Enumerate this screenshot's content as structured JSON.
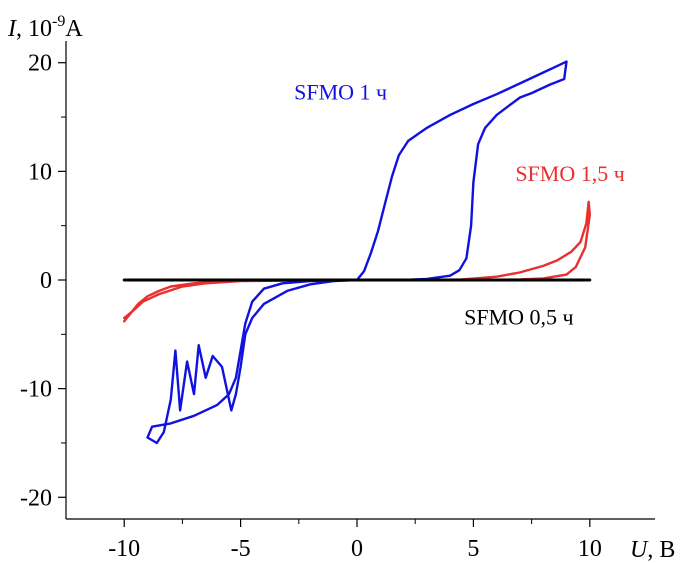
{
  "chart_data": {
    "type": "line",
    "ylabel": {
      "symbol": "I",
      "unit_prefix": ", 10",
      "exponent": "-9",
      "unit": "A"
    },
    "xlabel": {
      "symbol": "U",
      "unit": ", B"
    },
    "xlim": [
      -12.5,
      12.8
    ],
    "ylim": [
      -22,
      22
    ],
    "x_ticks": [
      "-10",
      "-5",
      "0",
      "5",
      "10"
    ],
    "x_tick_values": [
      -10,
      -5,
      0,
      5,
      10
    ],
    "y_ticks": [
      "20",
      "10",
      "0",
      "-10",
      "-20"
    ],
    "y_tick_values": [
      20,
      10,
      0,
      -10,
      -20
    ],
    "series": [
      {
        "name": "SFMO 0,5 ч",
        "color": "#000000",
        "points": [
          [
            -10,
            0
          ],
          [
            10,
            0
          ]
        ]
      },
      {
        "name": "SFMO 1,5 ч",
        "color": "#e83030",
        "points": [
          [
            -10,
            -3.8
          ],
          [
            -9.7,
            -3.0
          ],
          [
            -9.4,
            -2.2
          ],
          [
            -9.0,
            -1.5
          ],
          [
            -8.5,
            -1.0
          ],
          [
            -8.0,
            -0.6
          ],
          [
            -7.0,
            -0.3
          ],
          [
            -6.0,
            -0.15
          ],
          [
            -5.0,
            -0.05
          ],
          [
            -3.0,
            0
          ],
          [
            0,
            0
          ],
          [
            3.0,
            0
          ],
          [
            4.5,
            0.05
          ],
          [
            6.0,
            0.3
          ],
          [
            7.0,
            0.7
          ],
          [
            8.0,
            1.3
          ],
          [
            8.6,
            1.8
          ],
          [
            9.2,
            2.6
          ],
          [
            9.6,
            3.5
          ],
          [
            9.85,
            5.2
          ],
          [
            9.95,
            7.2
          ],
          [
            10,
            6.0
          ],
          [
            9.8,
            3.0
          ],
          [
            9.4,
            1.2
          ],
          [
            9.0,
            0.5
          ],
          [
            8.0,
            0.15
          ],
          [
            7.0,
            0.05
          ],
          [
            5.0,
            0
          ],
          [
            0,
            0
          ],
          [
            -5.0,
            -0.1
          ],
          [
            -6.5,
            -0.3
          ],
          [
            -7.5,
            -0.6
          ],
          [
            -8.5,
            -1.3
          ],
          [
            -9.2,
            -2.0
          ],
          [
            -9.6,
            -2.8
          ],
          [
            -10,
            -3.5
          ]
        ]
      },
      {
        "name": "SFMO 1 ч",
        "color": "#1212e0",
        "points": [
          [
            -3.2,
            -0.3
          ],
          [
            -2.0,
            -0.1
          ],
          [
            0,
            0
          ],
          [
            0.3,
            0.8
          ],
          [
            0.6,
            2.5
          ],
          [
            0.9,
            4.5
          ],
          [
            1.2,
            7.0
          ],
          [
            1.5,
            9.5
          ],
          [
            1.8,
            11.5
          ],
          [
            2.2,
            12.8
          ],
          [
            3.0,
            14.0
          ],
          [
            4.0,
            15.2
          ],
          [
            5.0,
            16.2
          ],
          [
            6.0,
            17.1
          ],
          [
            7.0,
            18.1
          ],
          [
            8.0,
            19.1
          ],
          [
            8.7,
            19.8
          ],
          [
            9.0,
            20.1
          ],
          [
            8.9,
            18.5
          ],
          [
            8.3,
            18.0
          ],
          [
            7.5,
            17.2
          ],
          [
            7.0,
            16.8
          ],
          [
            6.5,
            16.0
          ],
          [
            6.0,
            15.2
          ],
          [
            5.5,
            14.0
          ],
          [
            5.2,
            12.5
          ],
          [
            5.0,
            9.0
          ],
          [
            4.9,
            5.0
          ],
          [
            4.7,
            2.0
          ],
          [
            4.4,
            0.9
          ],
          [
            4.0,
            0.4
          ],
          [
            3.0,
            0.1
          ],
          [
            2.0,
            0
          ],
          [
            0,
            0
          ],
          [
            -1.0,
            -0.1
          ],
          [
            -2.0,
            -0.4
          ],
          [
            -3.0,
            -1.0
          ],
          [
            -4.0,
            -2.2
          ],
          [
            -4.5,
            -3.5
          ],
          [
            -4.8,
            -5.0
          ],
          [
            -5.0,
            -8.0
          ],
          [
            -5.2,
            -10.5
          ],
          [
            -5.4,
            -12.0
          ],
          [
            -5.5,
            -11.0
          ],
          [
            -5.8,
            -8.0
          ],
          [
            -6.2,
            -7.0
          ],
          [
            -6.5,
            -9.0
          ],
          [
            -6.8,
            -6.0
          ],
          [
            -7.0,
            -10.5
          ],
          [
            -7.3,
            -7.5
          ],
          [
            -7.6,
            -12.0
          ],
          [
            -7.8,
            -6.5
          ],
          [
            -8.0,
            -11.0
          ],
          [
            -8.3,
            -14.0
          ],
          [
            -8.6,
            -15.0
          ],
          [
            -9.0,
            -14.5
          ],
          [
            -8.8,
            -13.5
          ],
          [
            -8.0,
            -13.2
          ],
          [
            -7.0,
            -12.5
          ],
          [
            -6.0,
            -11.5
          ],
          [
            -5.5,
            -10.5
          ],
          [
            -5.2,
            -9.0
          ],
          [
            -5.0,
            -6.5
          ],
          [
            -4.8,
            -4.0
          ],
          [
            -4.5,
            -2.0
          ],
          [
            -4.0,
            -0.8
          ],
          [
            -3.2,
            -0.3
          ]
        ]
      }
    ],
    "labels": [
      {
        "text": "SFMO 1 ч",
        "x": -2.7,
        "y": 16.6,
        "color": "#1212e0"
      },
      {
        "text": "SFMO 1,5 ч",
        "x": 6.8,
        "y": 9.1,
        "color": "#e83030"
      },
      {
        "text": "SFMO 0,5 ч",
        "x": 4.6,
        "y": -4.1,
        "color": "#000000"
      }
    ]
  }
}
